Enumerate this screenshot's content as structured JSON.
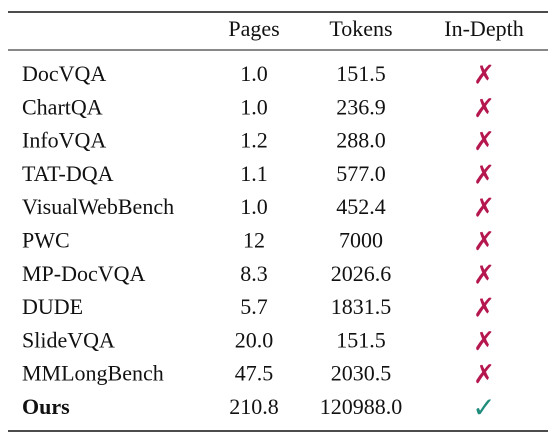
{
  "table": {
    "header": [
      "Pages",
      "Tokens",
      "In-Depth"
    ],
    "rows": [
      [
        "DocVQA",
        "1.0",
        "151.5",
        "✗"
      ],
      [
        "ChartQA",
        "1.0",
        "236.9",
        "✗"
      ],
      [
        "InfoVQA",
        "1.2",
        "288.0",
        "✗"
      ],
      [
        "TAT-DQA",
        "1.1",
        "577.0",
        "✗"
      ],
      [
        "VisualWebBench",
        "1.0",
        "452.4",
        "✗"
      ],
      [
        "PWC",
        "12",
        "7000",
        "✗"
      ],
      [
        "MP-DocVQA",
        "8.3",
        "2026.6",
        "✗"
      ],
      [
        "DUDE",
        "5.7",
        "1831.5",
        "✗"
      ],
      [
        "SlideVQA",
        "20.0",
        "151.5",
        "✗"
      ],
      [
        "MMLongBench",
        "47.5",
        "2030.5",
        "✗"
      ],
      [
        "Ours",
        "210.8",
        "120988.0",
        "✓"
      ]
    ]
  }
}
